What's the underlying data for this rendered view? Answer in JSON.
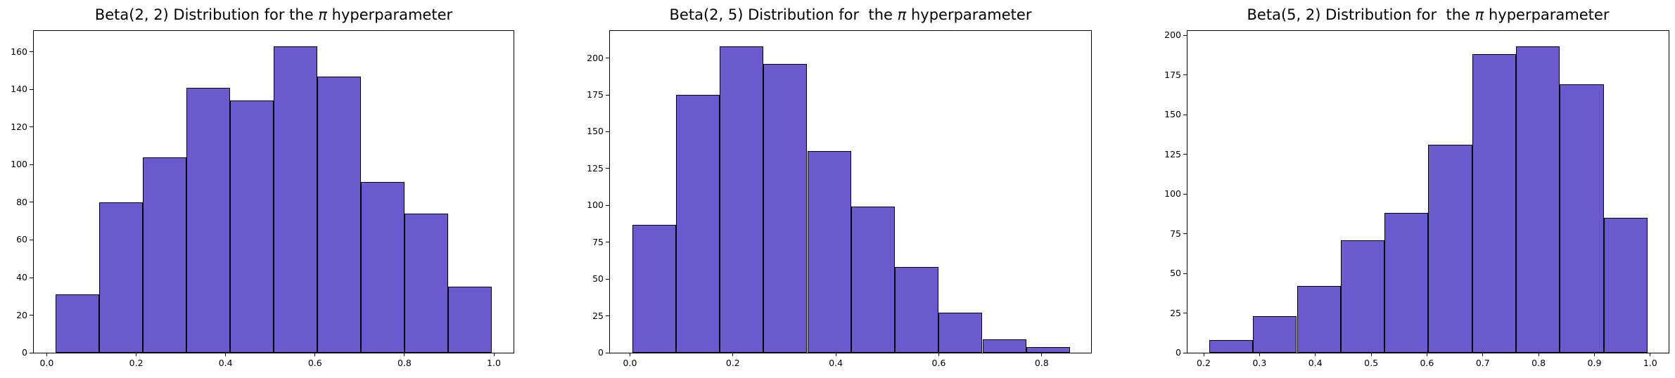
{
  "page": {
    "background": "#ffffff"
  },
  "chart_data": [
    {
      "type": "bar",
      "subtype": "histogram",
      "title": "Beta(2, 2) Distribution for the π hyperparameter",
      "bar_color": "#6a5acd",
      "bar_edge_color": "#000000",
      "bin_start": 0.02,
      "bin_end": 0.995,
      "num_bins": 10,
      "values": [
        31,
        80,
        104,
        141,
        134,
        163,
        147,
        91,
        74,
        35
      ],
      "xlim": [
        -0.029,
        1.044
      ],
      "ylim": [
        0,
        171.15
      ],
      "xticks": [
        0.0,
        0.2,
        0.4,
        0.6,
        0.8,
        1.0
      ],
      "xtick_labels": [
        "0.0",
        "0.2",
        "0.4",
        "0.6",
        "0.8",
        "1.0"
      ],
      "yticks": [
        0,
        20,
        40,
        60,
        80,
        100,
        120,
        140,
        160
      ],
      "ytick_labels": [
        "0",
        "20",
        "40",
        "60",
        "80",
        "100",
        "120",
        "140",
        "160"
      ],
      "grid": false,
      "legend": null
    },
    {
      "type": "bar",
      "subtype": "histogram",
      "title": "Beta(2, 5) Distribution for  the π hyperparameter",
      "bar_color": "#6a5acd",
      "bar_edge_color": "#000000",
      "bin_start": 0.004,
      "bin_end": 0.855,
      "num_bins": 10,
      "values": [
        87,
        175,
        208,
        196,
        137,
        99,
        58,
        27,
        9,
        4
      ],
      "xlim": [
        -0.039,
        0.896
      ],
      "ylim": [
        0,
        218.4
      ],
      "xticks": [
        0.0,
        0.2,
        0.4,
        0.6,
        0.8
      ],
      "xtick_labels": [
        "0.0",
        "0.2",
        "0.4",
        "0.6",
        "0.8"
      ],
      "yticks": [
        0,
        25,
        50,
        75,
        100,
        125,
        150,
        175,
        200
      ],
      "ytick_labels": [
        "0",
        "25",
        "50",
        "75",
        "100",
        "125",
        "150",
        "175",
        "200"
      ],
      "grid": false,
      "legend": null
    },
    {
      "type": "bar",
      "subtype": "histogram",
      "title": "Beta(5, 2) Distribution for  the π hyperparameter",
      "bar_color": "#6a5acd",
      "bar_edge_color": "#000000",
      "bin_start": 0.21,
      "bin_end": 0.995,
      "num_bins": 10,
      "values": [
        8,
        23,
        42,
        71,
        88,
        131,
        188,
        193,
        169,
        85
      ],
      "xlim": [
        0.171,
        1.033
      ],
      "ylim": [
        0,
        202.65
      ],
      "xticks": [
        0.2,
        0.3,
        0.4,
        0.5,
        0.6,
        0.7,
        0.8,
        0.9,
        1.0
      ],
      "xtick_labels": [
        "0.2",
        "0.3",
        "0.4",
        "0.5",
        "0.6",
        "0.7",
        "0.8",
        "0.9",
        "1.0"
      ],
      "yticks": [
        0,
        25,
        50,
        75,
        100,
        125,
        150,
        175,
        200
      ],
      "ytick_labels": [
        "0",
        "25",
        "50",
        "75",
        "100",
        "125",
        "150",
        "175",
        "200"
      ],
      "grid": false,
      "legend": null
    }
  ]
}
